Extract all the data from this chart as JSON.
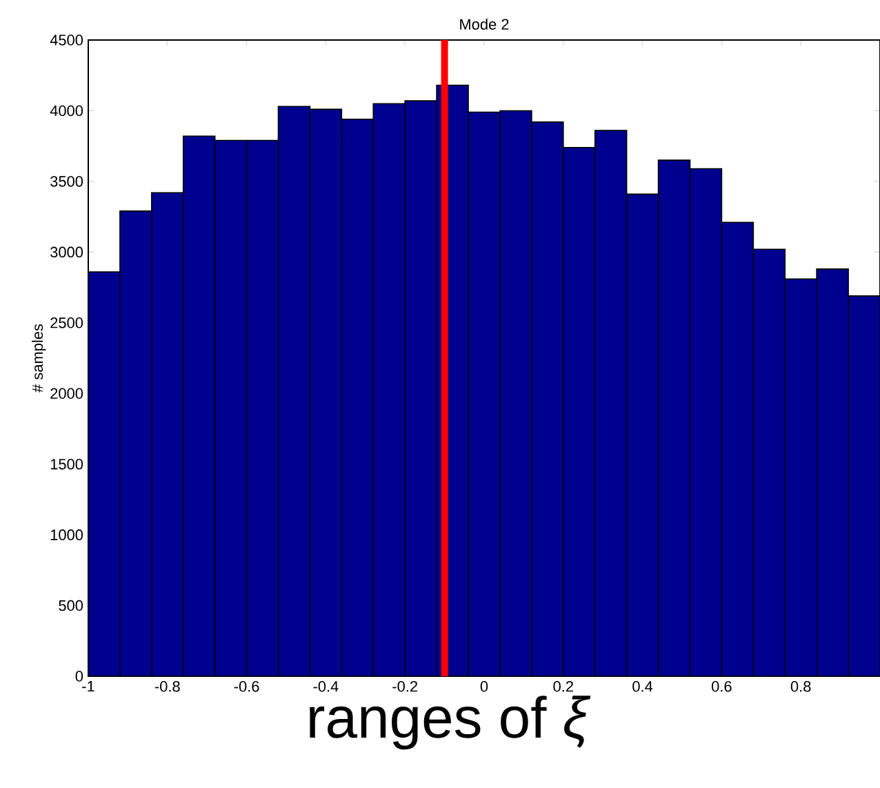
{
  "chart_data": {
    "type": "histogram",
    "title": "Mode 2",
    "xlabel": "ranges of *ξ*",
    "ylabel": "# samples",
    "bins": [
      -1,
      -0.92,
      -0.84,
      -0.76,
      -0.68,
      -0.6,
      -0.52,
      -0.44,
      -0.36,
      -0.28,
      -0.2,
      -0.12,
      -0.04,
      0.04,
      0.12,
      0.2,
      0.28,
      0.36,
      0.44,
      0.52,
      0.6,
      0.68,
      0.76,
      0.84,
      0.92,
      1.0
    ],
    "values": [
      2860,
      3290,
      3420,
      3820,
      3790,
      3790,
      4030,
      4010,
      3940,
      4050,
      4070,
      4180,
      3990,
      4000,
      3920,
      3740,
      3860,
      3410,
      3650,
      3590,
      3210,
      3020,
      2810,
      2880,
      2690
    ],
    "color": "#00008f",
    "xlim": [
      -1,
      1
    ],
    "ylim": [
      0,
      4500
    ],
    "xticks": [
      -1,
      -0.8,
      -0.6,
      -0.4,
      -0.2,
      0,
      0.2,
      0.4,
      0.6,
      0.8
    ],
    "yticks": [
      0,
      500,
      1000,
      1500,
      2000,
      2500,
      3000,
      3500,
      4000,
      4500
    ],
    "ref_lines": [
      {
        "axis": "x",
        "value": -0.1,
        "color": "#ff0000"
      }
    ]
  }
}
